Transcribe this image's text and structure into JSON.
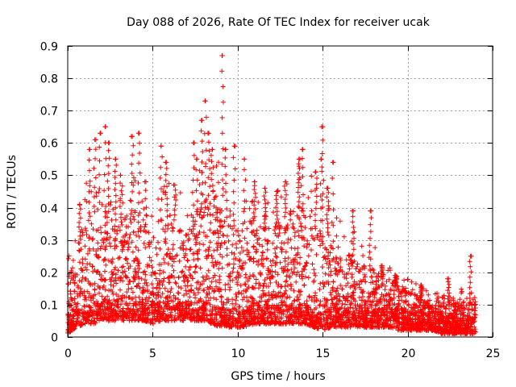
{
  "chart_data": {
    "type": "scatter",
    "title": "Day 088 of 2026, Rate Of TEC Index for receiver ucak",
    "xlabel": "GPS time / hours",
    "ylabel": "ROTI / TECUs",
    "xlim": [
      0,
      25
    ],
    "ylim": [
      0,
      0.9
    ],
    "xticks": [
      0,
      5,
      10,
      15,
      20,
      25
    ],
    "yticks": [
      0,
      0.1,
      0.2,
      0.3,
      0.4,
      0.5,
      0.6,
      0.7,
      0.8,
      0.9
    ],
    "xtick_labels": [
      "0",
      "5",
      "10",
      "15",
      "20",
      "25"
    ],
    "ytick_labels": [
      "0",
      "0.1",
      "0.2",
      "0.3",
      "0.4",
      "0.5",
      "0.6",
      "0.7",
      "0.8",
      "0.9"
    ],
    "grid": true,
    "legend": false,
    "marker": "+",
    "color": "#ff0000",
    "data_extent_hours": [
      0,
      24
    ],
    "envelope": {
      "x": [
        0,
        0.5,
        1,
        1.5,
        2,
        2.5,
        3,
        3.5,
        4,
        4.5,
        5,
        5.5,
        6,
        6.5,
        7,
        7.5,
        8,
        8.5,
        9,
        9.5,
        10,
        10.5,
        11,
        11.5,
        12,
        12.5,
        13,
        13.5,
        14,
        14.5,
        15,
        15.5,
        16,
        16.5,
        17,
        17.5,
        18,
        18.5,
        19,
        19.5,
        20,
        20.5,
        21,
        21.5,
        22,
        22.5,
        23,
        23.5,
        24
      ],
      "typical_max": [
        0.18,
        0.28,
        0.36,
        0.4,
        0.42,
        0.38,
        0.35,
        0.38,
        0.4,
        0.36,
        0.3,
        0.36,
        0.38,
        0.35,
        0.33,
        0.38,
        0.42,
        0.45,
        0.4,
        0.35,
        0.34,
        0.36,
        0.36,
        0.34,
        0.34,
        0.36,
        0.38,
        0.4,
        0.42,
        0.36,
        0.36,
        0.3,
        0.28,
        0.26,
        0.25,
        0.22,
        0.22,
        0.18,
        0.18,
        0.16,
        0.14,
        0.13,
        0.12,
        0.11,
        0.1,
        0.1,
        0.11,
        0.12,
        0.12
      ],
      "floor": [
        0.01,
        0.03,
        0.04,
        0.04,
        0.05,
        0.05,
        0.05,
        0.05,
        0.05,
        0.05,
        0.04,
        0.05,
        0.05,
        0.05,
        0.05,
        0.05,
        0.05,
        0.04,
        0.03,
        0.03,
        0.03,
        0.03,
        0.04,
        0.04,
        0.04,
        0.04,
        0.04,
        0.04,
        0.04,
        0.03,
        0.02,
        0.03,
        0.03,
        0.03,
        0.03,
        0.03,
        0.03,
        0.03,
        0.03,
        0.02,
        0.02,
        0.02,
        0.02,
        0.02,
        0.01,
        0.01,
        0.01,
        0.01,
        0.01
      ]
    },
    "peaks": [
      {
        "x": 0.7,
        "y": 0.41
      },
      {
        "x": 1.3,
        "y": 0.58
      },
      {
        "x": 1.6,
        "y": 0.61
      },
      {
        "x": 1.9,
        "y": 0.63
      },
      {
        "x": 2.2,
        "y": 0.65
      },
      {
        "x": 2.4,
        "y": 0.6
      },
      {
        "x": 2.8,
        "y": 0.55
      },
      {
        "x": 3.1,
        "y": 0.5
      },
      {
        "x": 3.8,
        "y": 0.62
      },
      {
        "x": 4.2,
        "y": 0.63
      },
      {
        "x": 4.6,
        "y": 0.48
      },
      {
        "x": 5.5,
        "y": 0.59
      },
      {
        "x": 5.8,
        "y": 0.54
      },
      {
        "x": 6.3,
        "y": 0.47
      },
      {
        "x": 7.4,
        "y": 0.6
      },
      {
        "x": 7.6,
        "y": 0.55
      },
      {
        "x": 7.9,
        "y": 0.67
      },
      {
        "x": 8.1,
        "y": 0.73
      },
      {
        "x": 8.3,
        "y": 0.63
      },
      {
        "x": 8.5,
        "y": 0.58
      },
      {
        "x": 9.1,
        "y": 0.87
      },
      {
        "x": 9.3,
        "y": 0.58
      },
      {
        "x": 9.8,
        "y": 0.59
      },
      {
        "x": 10.4,
        "y": 0.55
      },
      {
        "x": 11.0,
        "y": 0.48
      },
      {
        "x": 11.6,
        "y": 0.46
      },
      {
        "x": 12.3,
        "y": 0.45
      },
      {
        "x": 12.8,
        "y": 0.48
      },
      {
        "x": 13.6,
        "y": 0.55
      },
      {
        "x": 13.8,
        "y": 0.58
      },
      {
        "x": 14.6,
        "y": 0.51
      },
      {
        "x": 14.9,
        "y": 0.55
      },
      {
        "x": 15.0,
        "y": 0.65
      },
      {
        "x": 15.3,
        "y": 0.46
      },
      {
        "x": 15.6,
        "y": 0.54
      },
      {
        "x": 16.8,
        "y": 0.39
      },
      {
        "x": 17.8,
        "y": 0.39
      },
      {
        "x": 18.5,
        "y": 0.22
      },
      {
        "x": 19.3,
        "y": 0.19
      },
      {
        "x": 20.8,
        "y": 0.16
      },
      {
        "x": 22.4,
        "y": 0.18
      },
      {
        "x": 23.7,
        "y": 0.25
      }
    ]
  }
}
